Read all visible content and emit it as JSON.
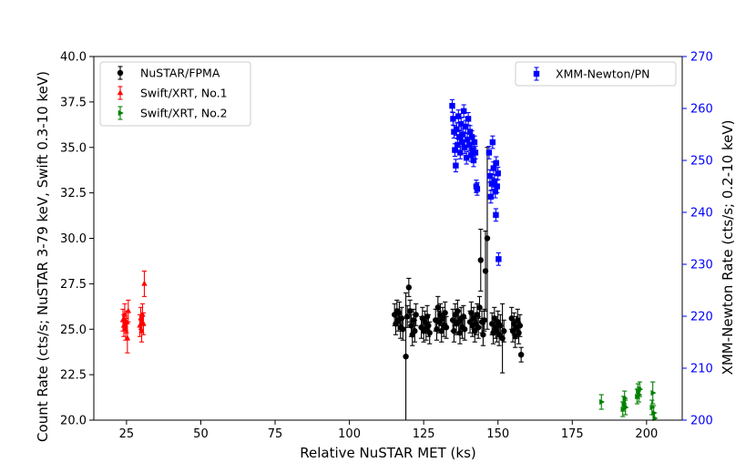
{
  "chart_data": {
    "type": "scatter",
    "title": "",
    "xlabel": "Relative NuSTAR MET (ks)",
    "ylabel": "Count Rate (cts/s; NuSTAR 3-79 keV, Swift 0.3-10 keV)",
    "y2label": "XMM-Newton Rate (cts/s; 0.2-10 keV)",
    "xlim": [
      14,
      212
    ],
    "ylim": [
      20,
      40
    ],
    "y2lim": [
      200,
      270
    ],
    "xticks": [
      25,
      50,
      75,
      100,
      125,
      150,
      175,
      200
    ],
    "yticks": [
      20.0,
      22.5,
      25.0,
      27.5,
      30.0,
      32.5,
      35.0,
      37.5,
      40.0
    ],
    "y2ticks": [
      200,
      210,
      220,
      230,
      240,
      250,
      260,
      270
    ],
    "xtick_labels": [
      "25",
      "50",
      "75",
      "100",
      "125",
      "150",
      "175",
      "200"
    ],
    "ytick_labels": [
      "20.0",
      "22.5",
      "25.0",
      "27.5",
      "30.0",
      "32.5",
      "35.0",
      "37.5",
      "40.0"
    ],
    "y2tick_labels": [
      "200",
      "210",
      "220",
      "230",
      "240",
      "250",
      "260",
      "270"
    ],
    "grid": false,
    "legend_left": {
      "placement": "upper-left",
      "entries": [
        "NuSTAR/FPMA",
        "Swift/XRT, No.1",
        "Swift/XRT, No.2"
      ]
    },
    "legend_right": {
      "placement": "upper-right",
      "entries": [
        "XMM-Newton/PN"
      ]
    },
    "colors": {
      "nustar": "#000000",
      "swift1": "#ff0000",
      "swift2": "#008000",
      "xmm": "#0000ff"
    },
    "series": [
      {
        "name": "NuSTAR/FPMA",
        "axis": "left",
        "marker": "circle",
        "color": "#000000",
        "points": [
          {
            "x": 115.2,
            "y": 25.8,
            "err": 0.6
          },
          {
            "x": 115.6,
            "y": 25.3,
            "err": 0.6
          },
          {
            "x": 116.0,
            "y": 26.0,
            "err": 0.6
          },
          {
            "x": 116.4,
            "y": 25.5,
            "err": 0.6
          },
          {
            "x": 116.8,
            "y": 25.9,
            "err": 0.6
          },
          {
            "x": 117.2,
            "y": 25.1,
            "err": 0.6
          },
          {
            "x": 117.6,
            "y": 25.6,
            "err": 0.6
          },
          {
            "x": 118.0,
            "y": 25.0,
            "err": 0.6
          },
          {
            "x": 119.0,
            "y": 23.5,
            "err": 3.5
          },
          {
            "x": 119.5,
            "y": 25.7,
            "err": 0.6
          },
          {
            "x": 120.0,
            "y": 27.3,
            "err": 0.5
          },
          {
            "x": 120.4,
            "y": 26.0,
            "err": 0.6
          },
          {
            "x": 120.8,
            "y": 25.2,
            "err": 0.6
          },
          {
            "x": 121.2,
            "y": 24.7,
            "err": 0.6
          },
          {
            "x": 121.6,
            "y": 25.5,
            "err": 0.6
          },
          {
            "x": 122.0,
            "y": 24.9,
            "err": 0.6
          },
          {
            "x": 122.4,
            "y": 25.8,
            "err": 0.6
          },
          {
            "x": 124.2,
            "y": 25.1,
            "err": 0.6
          },
          {
            "x": 124.6,
            "y": 25.6,
            "err": 0.6
          },
          {
            "x": 125.0,
            "y": 24.9,
            "err": 0.6
          },
          {
            "x": 125.4,
            "y": 25.4,
            "err": 0.6
          },
          {
            "x": 125.8,
            "y": 25.0,
            "err": 0.6
          },
          {
            "x": 126.2,
            "y": 25.7,
            "err": 0.6
          },
          {
            "x": 126.6,
            "y": 25.2,
            "err": 0.6
          },
          {
            "x": 127.0,
            "y": 24.8,
            "err": 0.6
          },
          {
            "x": 129.0,
            "y": 25.5,
            "err": 0.6
          },
          {
            "x": 129.4,
            "y": 25.0,
            "err": 0.6
          },
          {
            "x": 129.8,
            "y": 26.2,
            "err": 0.6
          },
          {
            "x": 130.2,
            "y": 25.4,
            "err": 0.6
          },
          {
            "x": 130.6,
            "y": 25.8,
            "err": 0.6
          },
          {
            "x": 131.0,
            "y": 24.9,
            "err": 0.6
          },
          {
            "x": 131.4,
            "y": 25.6,
            "err": 0.6
          },
          {
            "x": 131.8,
            "y": 25.2,
            "err": 0.6
          },
          {
            "x": 132.2,
            "y": 25.9,
            "err": 0.6
          },
          {
            "x": 132.6,
            "y": 25.1,
            "err": 0.6
          },
          {
            "x": 134.8,
            "y": 25.5,
            "err": 0.6
          },
          {
            "x": 135.2,
            "y": 24.9,
            "err": 0.6
          },
          {
            "x": 135.6,
            "y": 25.8,
            "err": 0.6
          },
          {
            "x": 136.0,
            "y": 25.3,
            "err": 0.6
          },
          {
            "x": 136.4,
            "y": 26.0,
            "err": 0.6
          },
          {
            "x": 136.8,
            "y": 25.4,
            "err": 0.6
          },
          {
            "x": 137.2,
            "y": 24.8,
            "err": 0.6
          },
          {
            "x": 137.6,
            "y": 25.6,
            "err": 0.6
          },
          {
            "x": 138.0,
            "y": 25.1,
            "err": 0.6
          },
          {
            "x": 138.4,
            "y": 25.7,
            "err": 0.6
          },
          {
            "x": 138.8,
            "y": 25.0,
            "err": 0.6
          },
          {
            "x": 140.6,
            "y": 25.4,
            "err": 0.6
          },
          {
            "x": 141.0,
            "y": 25.9,
            "err": 0.6
          },
          {
            "x": 141.4,
            "y": 25.2,
            "err": 0.6
          },
          {
            "x": 141.8,
            "y": 25.6,
            "err": 0.6
          },
          {
            "x": 142.2,
            "y": 24.9,
            "err": 0.6
          },
          {
            "x": 142.6,
            "y": 25.3,
            "err": 0.6
          },
          {
            "x": 143.0,
            "y": 25.8,
            "err": 0.6
          },
          {
            "x": 143.4,
            "y": 25.1,
            "err": 0.6
          },
          {
            "x": 143.8,
            "y": 26.2,
            "err": 0.6
          },
          {
            "x": 144.2,
            "y": 28.8,
            "err": 1.7
          },
          {
            "x": 144.6,
            "y": 25.4,
            "err": 0.6
          },
          {
            "x": 145.0,
            "y": 24.7,
            "err": 0.6
          },
          {
            "x": 145.4,
            "y": 25.5,
            "err": 0.6
          },
          {
            "x": 145.8,
            "y": 28.2,
            "err": 2.2
          },
          {
            "x": 146.4,
            "y": 30.0,
            "err": 5.0
          },
          {
            "x": 148.0,
            "y": 25.3,
            "err": 0.6
          },
          {
            "x": 148.4,
            "y": 24.8,
            "err": 0.6
          },
          {
            "x": 148.8,
            "y": 25.6,
            "err": 0.6
          },
          {
            "x": 149.2,
            "y": 25.1,
            "err": 0.6
          },
          {
            "x": 149.6,
            "y": 24.9,
            "err": 0.6
          },
          {
            "x": 150.0,
            "y": 25.4,
            "err": 0.6
          },
          {
            "x": 150.4,
            "y": 24.7,
            "err": 0.6
          },
          {
            "x": 150.8,
            "y": 25.2,
            "err": 0.6
          },
          {
            "x": 151.5,
            "y": 24.5,
            "err": 1.9
          },
          {
            "x": 152.0,
            "y": 24.9,
            "err": 0.6
          },
          {
            "x": 154.6,
            "y": 25.6,
            "err": 0.6
          },
          {
            "x": 155.0,
            "y": 24.9,
            "err": 0.6
          },
          {
            "x": 155.4,
            "y": 25.3,
            "err": 0.6
          },
          {
            "x": 155.8,
            "y": 24.6,
            "err": 0.6
          },
          {
            "x": 156.2,
            "y": 25.1,
            "err": 0.6
          },
          {
            "x": 156.6,
            "y": 25.5,
            "err": 0.6
          },
          {
            "x": 157.0,
            "y": 24.8,
            "err": 0.6
          },
          {
            "x": 157.4,
            "y": 25.2,
            "err": 0.6
          },
          {
            "x": 157.8,
            "y": 23.6,
            "err": 0.4
          }
        ]
      },
      {
        "name": "Swift/XRT, No.1",
        "axis": "left",
        "marker": "triangle-up",
        "color": "#ff0000",
        "points": [
          {
            "x": 23.8,
            "y": 25.5,
            "err": 0.6
          },
          {
            "x": 24.1,
            "y": 25.2,
            "err": 0.6
          },
          {
            "x": 24.4,
            "y": 25.8,
            "err": 0.6
          },
          {
            "x": 24.7,
            "y": 25.0,
            "err": 0.6
          },
          {
            "x": 25.0,
            "y": 25.4,
            "err": 0.6
          },
          {
            "x": 25.3,
            "y": 24.5,
            "err": 0.8
          },
          {
            "x": 25.6,
            "y": 26.0,
            "err": 0.6
          },
          {
            "x": 29.5,
            "y": 25.2,
            "err": 0.6
          },
          {
            "x": 29.8,
            "y": 25.6,
            "err": 0.6
          },
          {
            "x": 30.1,
            "y": 24.9,
            "err": 0.6
          },
          {
            "x": 30.4,
            "y": 25.8,
            "err": 0.6
          },
          {
            "x": 30.7,
            "y": 25.3,
            "err": 0.6
          },
          {
            "x": 31.0,
            "y": 27.5,
            "err": 0.7
          }
        ]
      },
      {
        "name": "Swift/XRT, No.2",
        "axis": "left",
        "marker": "triangle-right",
        "color": "#008000",
        "points": [
          {
            "x": 184.8,
            "y": 21.0,
            "err": 0.4
          },
          {
            "x": 192.0,
            "y": 20.6,
            "err": 0.4
          },
          {
            "x": 192.3,
            "y": 20.9,
            "err": 0.4
          },
          {
            "x": 192.6,
            "y": 21.2,
            "err": 0.4
          },
          {
            "x": 192.9,
            "y": 20.7,
            "err": 0.4
          },
          {
            "x": 196.8,
            "y": 21.3,
            "err": 0.4
          },
          {
            "x": 197.1,
            "y": 21.6,
            "err": 0.4
          },
          {
            "x": 197.4,
            "y": 21.4,
            "err": 0.4
          },
          {
            "x": 197.7,
            "y": 21.7,
            "err": 0.4
          },
          {
            "x": 201.8,
            "y": 20.7,
            "err": 0.4
          },
          {
            "x": 202.1,
            "y": 21.5,
            "err": 0.6
          },
          {
            "x": 202.4,
            "y": 20.4,
            "err": 0.4
          },
          {
            "x": 202.7,
            "y": 20.1,
            "err": 0.3
          }
        ]
      },
      {
        "name": "XMM-Newton/PN",
        "axis": "right",
        "marker": "square",
        "color": "#0000ff",
        "points": [
          {
            "x": 134.6,
            "y": 260.5,
            "err": 1.2
          },
          {
            "x": 134.9,
            "y": 258.0,
            "err": 1.2
          },
          {
            "x": 135.2,
            "y": 255.5,
            "err": 1.2
          },
          {
            "x": 135.5,
            "y": 252.0,
            "err": 1.2
          },
          {
            "x": 135.8,
            "y": 249.0,
            "err": 1.2
          },
          {
            "x": 136.1,
            "y": 256.0,
            "err": 1.2
          },
          {
            "x": 136.4,
            "y": 253.0,
            "err": 1.2
          },
          {
            "x": 136.7,
            "y": 258.5,
            "err": 1.2
          },
          {
            "x": 137.0,
            "y": 254.5,
            "err": 1.2
          },
          {
            "x": 137.3,
            "y": 251.5,
            "err": 1.2
          },
          {
            "x": 137.6,
            "y": 257.0,
            "err": 1.2
          },
          {
            "x": 137.9,
            "y": 253.5,
            "err": 1.2
          },
          {
            "x": 138.2,
            "y": 255.0,
            "err": 1.2
          },
          {
            "x": 138.5,
            "y": 259.5,
            "err": 1.2
          },
          {
            "x": 138.8,
            "y": 252.5,
            "err": 1.2
          },
          {
            "x": 139.1,
            "y": 256.5,
            "err": 1.2
          },
          {
            "x": 139.4,
            "y": 250.5,
            "err": 1.2
          },
          {
            "x": 139.7,
            "y": 254.0,
            "err": 1.2
          },
          {
            "x": 140.0,
            "y": 258.0,
            "err": 1.2
          },
          {
            "x": 140.3,
            "y": 253.0,
            "err": 1.2
          },
          {
            "x": 140.6,
            "y": 255.5,
            "err": 1.2
          },
          {
            "x": 140.9,
            "y": 251.0,
            "err": 1.2
          },
          {
            "x": 141.2,
            "y": 254.5,
            "err": 1.2
          },
          {
            "x": 141.5,
            "y": 252.0,
            "err": 1.2
          },
          {
            "x": 141.8,
            "y": 250.0,
            "err": 1.2
          },
          {
            "x": 142.1,
            "y": 253.5,
            "err": 1.2
          },
          {
            "x": 142.4,
            "y": 251.5,
            "err": 1.2
          },
          {
            "x": 142.7,
            "y": 245.0,
            "err": 1.2
          },
          {
            "x": 143.0,
            "y": 244.5,
            "err": 1.2
          },
          {
            "x": 147.0,
            "y": 251.5,
            "err": 1.2
          },
          {
            "x": 147.3,
            "y": 247.0,
            "err": 1.2
          },
          {
            "x": 147.6,
            "y": 243.0,
            "err": 1.2
          },
          {
            "x": 147.9,
            "y": 245.5,
            "err": 1.2
          },
          {
            "x": 148.2,
            "y": 253.5,
            "err": 1.2
          },
          {
            "x": 148.5,
            "y": 248.5,
            "err": 1.2
          },
          {
            "x": 148.8,
            "y": 246.0,
            "err": 1.2
          },
          {
            "x": 149.1,
            "y": 244.0,
            "err": 1.2
          },
          {
            "x": 149.4,
            "y": 249.5,
            "err": 1.2
          },
          {
            "x": 149.7,
            "y": 245.0,
            "err": 1.2
          },
          {
            "x": 150.0,
            "y": 247.5,
            "err": 1.2
          },
          {
            "x": 149.3,
            "y": 239.5,
            "err": 1.2
          },
          {
            "x": 150.2,
            "y": 231.0,
            "err": 1.2
          }
        ]
      }
    ]
  }
}
